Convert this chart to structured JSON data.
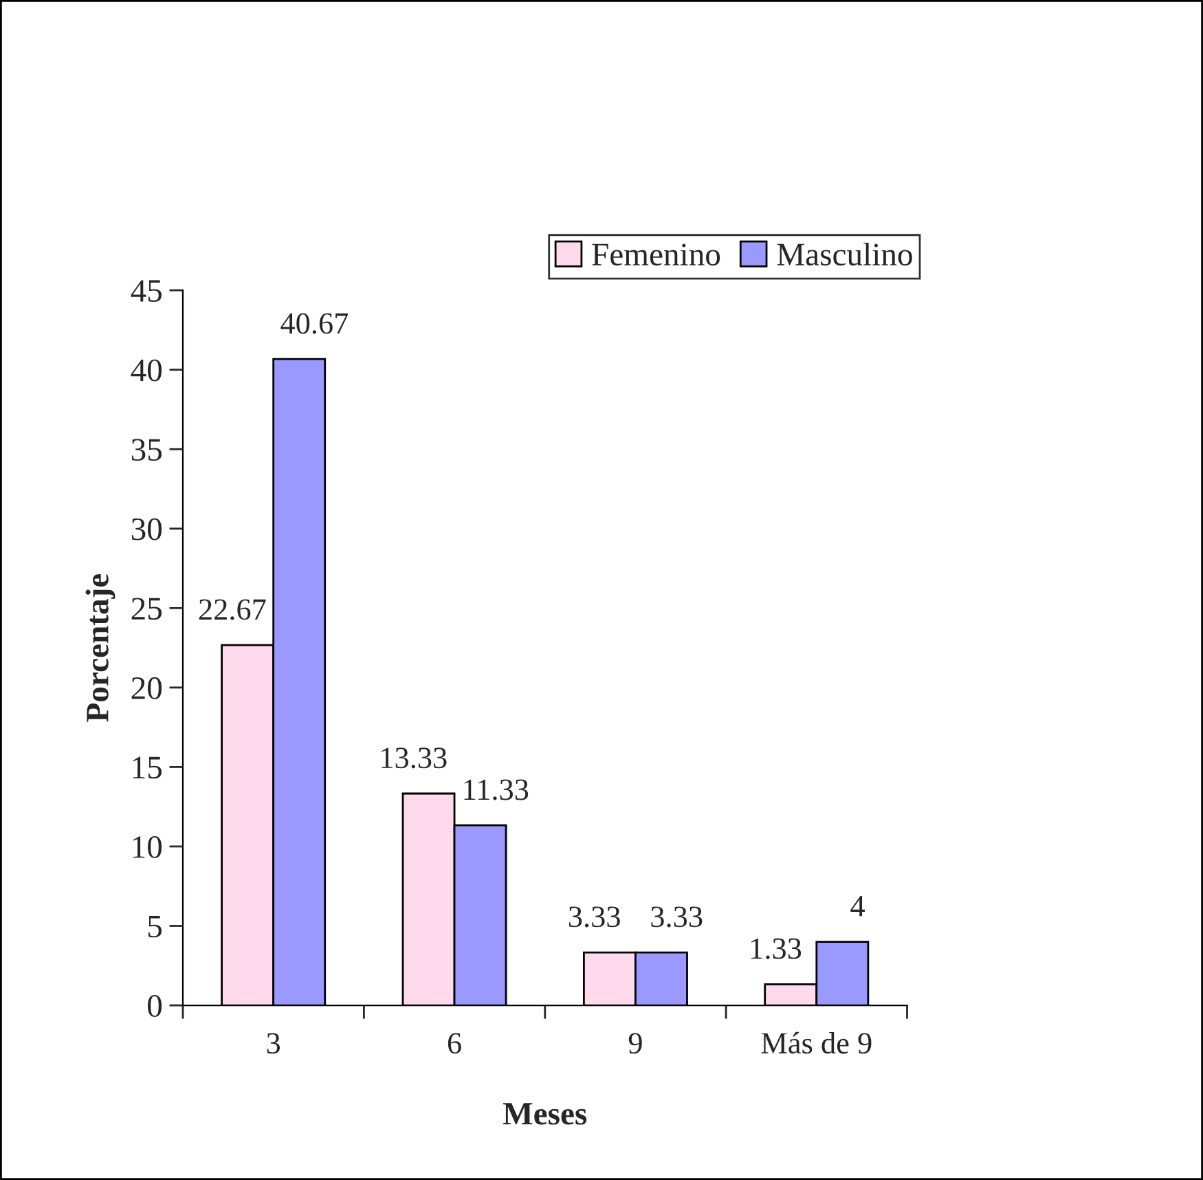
{
  "chart_data": {
    "type": "bar",
    "xlabel": "Meses",
    "ylabel": "Porcentaje",
    "categories": [
      "3",
      "6",
      "9",
      "Más de 9"
    ],
    "series": [
      {
        "name": "Femenino",
        "color": "#ffd9ec",
        "values": [
          22.67,
          13.33,
          3.33,
          1.33
        ]
      },
      {
        "name": "Masculino",
        "color": "#9999ff",
        "values": [
          40.67,
          11.33,
          3.33,
          4
        ]
      }
    ],
    "ylim": [
      0,
      45
    ],
    "yticks": [
      0,
      5,
      10,
      15,
      20,
      25,
      30,
      35,
      40,
      45
    ],
    "data_labels": true,
    "grid": false,
    "legend": "top right"
  }
}
